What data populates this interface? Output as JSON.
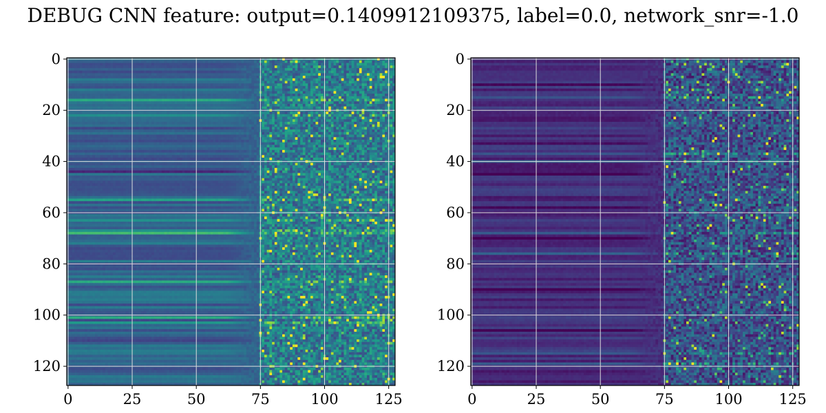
{
  "title": "DEBUG CNN feature: output=0.1409912109375, label=0.0, network_snr=-1.0",
  "chart_data": [
    {
      "type": "heatmap",
      "title": "",
      "xlabel": "",
      "ylabel": "",
      "xlim": [
        -0.5,
        127.5
      ],
      "ylim": [
        127.5,
        -0.5
      ],
      "xticks": [
        0,
        25,
        50,
        75,
        100,
        125
      ],
      "yticks": [
        0,
        20,
        40,
        60,
        80,
        100,
        120
      ],
      "grid": true,
      "colormap": "viridis",
      "shape": [
        128,
        128
      ],
      "bright_rows": [
        16,
        22,
        55,
        63,
        67,
        68,
        87,
        101,
        103
      ],
      "dark_rows": [
        30,
        44,
        52,
        78,
        96,
        110
      ]
    },
    {
      "type": "heatmap",
      "title": "",
      "xlabel": "",
      "ylabel": "",
      "xlim": [
        -0.5,
        127.5
      ],
      "ylim": [
        127.5,
        -0.5
      ],
      "xticks": [
        0,
        25,
        50,
        75,
        100,
        125
      ],
      "yticks": [
        0,
        20,
        40,
        60,
        80,
        100,
        120
      ],
      "grid": true,
      "colormap": "viridis",
      "shape": [
        128,
        128
      ],
      "bright_rows": [
        15,
        37,
        40,
        68,
        76,
        115,
        119
      ],
      "dark_rows": [
        10,
        33,
        45,
        58,
        70,
        90,
        106,
        126
      ]
    }
  ]
}
